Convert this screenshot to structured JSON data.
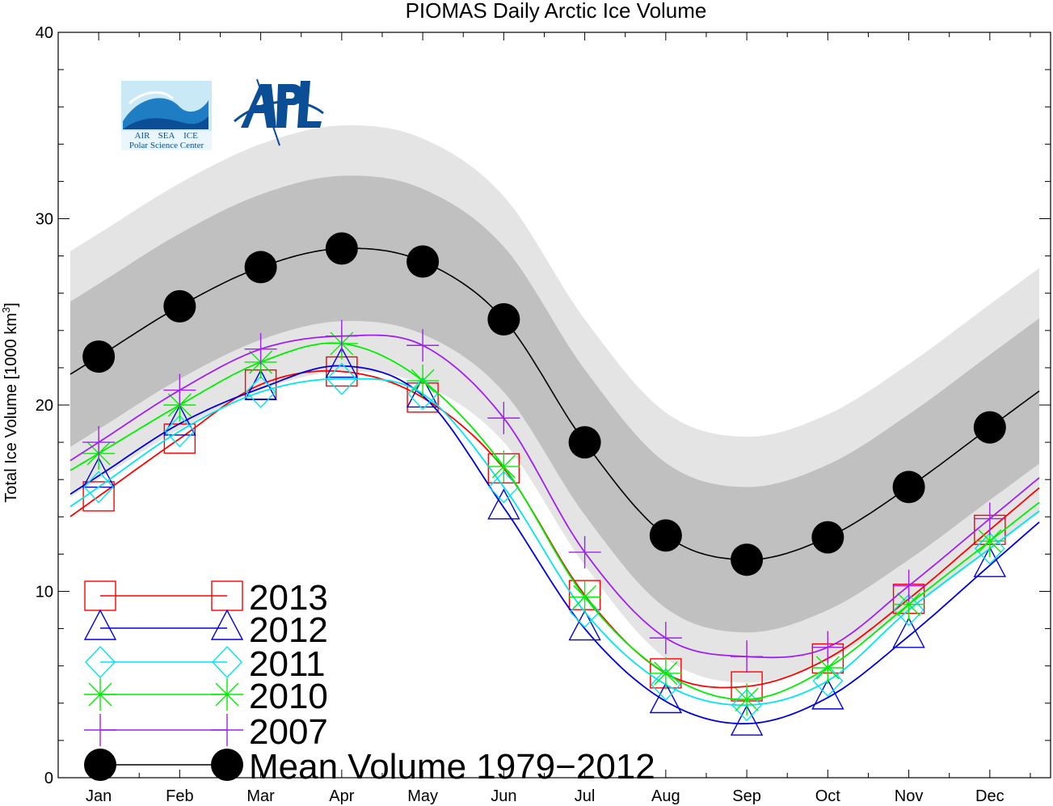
{
  "chart_data": {
    "type": "line",
    "title": "PIOMAS Daily Arctic Ice Volume",
    "ylabel": "Total Ice Volume [1000 km",
    "ylabel_sup": "3",
    "ylabel_close": "]",
    "ylim": [
      0,
      40
    ],
    "yticks": [
      0,
      10,
      20,
      30,
      40
    ],
    "categories": [
      "Jan",
      "Feb",
      "Mar",
      "Apr",
      "May",
      "Jun",
      "Jul",
      "Aug",
      "Sep",
      "Oct",
      "Nov",
      "Dec"
    ],
    "series": [
      {
        "name": "2013",
        "color": "#ff0000",
        "marker": "square",
        "values": [
          15.1,
          18.2,
          21.1,
          21.8,
          20.4,
          16.6,
          9.8,
          5.6,
          4.9,
          6.4,
          9.6,
          13.3
        ]
      },
      {
        "name": "2012",
        "color": "#0000dd",
        "marker": "triangle",
        "values": [
          16.2,
          19.0,
          20.9,
          22.1,
          20.5,
          14.5,
          8.0,
          4.1,
          2.9,
          4.3,
          7.6,
          11.4
        ]
      },
      {
        "name": "2011",
        "color": "#00e5ee",
        "marker": "diamond",
        "values": [
          15.6,
          18.6,
          20.7,
          21.4,
          20.6,
          15.6,
          8.9,
          5.0,
          3.9,
          5.2,
          9.0,
          12.3
        ]
      },
      {
        "name": "2010",
        "color": "#00ee00",
        "marker": "asterisk",
        "values": [
          17.4,
          20.0,
          22.3,
          23.3,
          21.3,
          16.7,
          9.7,
          5.6,
          4.2,
          5.9,
          9.3,
          12.7
        ]
      },
      {
        "name": "2007",
        "color": "#a020f0",
        "marker": "plus",
        "values": [
          18.0,
          20.8,
          23.0,
          23.7,
          23.2,
          19.3,
          12.1,
          7.5,
          6.5,
          7.0,
          10.3,
          13.9
        ]
      },
      {
        "name": "Mean Volume 1979-2012",
        "color": "#000000",
        "marker": "circle",
        "values": [
          22.6,
          25.3,
          27.4,
          28.4,
          27.7,
          24.6,
          18.0,
          13.0,
          11.7,
          12.9,
          15.6,
          18.8
        ]
      }
    ],
    "legend": {
      "placement": "bottom-left",
      "labels": [
        "2013",
        "2012",
        "2011",
        "2010",
        "2007",
        "Mean Volume 1979−2012"
      ]
    },
    "bands": {
      "one_sd_color": "#c0c0c0",
      "two_sd_color": "#e4e4e4",
      "one_sd": 3.9,
      "two_sd": 6.6
    },
    "grid": false
  },
  "logos": {
    "psc_labels": [
      "AIR",
      "SEA",
      "ICE"
    ],
    "psc_name": "Polar Science Center",
    "apl_text": "APL"
  }
}
